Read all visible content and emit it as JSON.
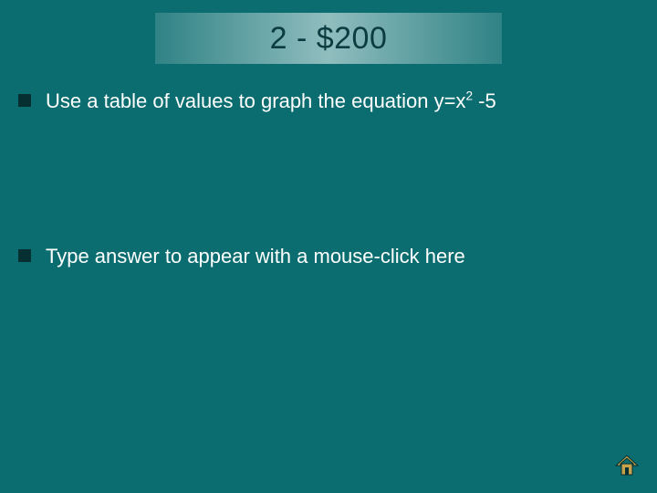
{
  "slide": {
    "background_color": "#0b6d70",
    "title": {
      "text": "2 - $200",
      "text_color": "#0b3c3f",
      "fontsize": 34,
      "gradient_overlay": {
        "from": "rgba(255,255,255,0.15)",
        "mid": "rgba(255,255,255,0.55)",
        "to": "rgba(255,255,255,0.15)"
      }
    },
    "bullets": [
      {
        "text_html": "Use a table of values to graph the equation y=x<sup>2</sup> -5",
        "text_plain": "Use a table of values to graph the equation y=x2 -5"
      },
      {
        "text_plain": "Type answer to appear with a mouse-click here"
      }
    ],
    "bullet_style": {
      "marker_color": "#052f31",
      "text_color": "#ffffff",
      "fontsize": 22
    },
    "home_button": {
      "fill": "#c7a24a",
      "stroke": "#052f31"
    }
  }
}
